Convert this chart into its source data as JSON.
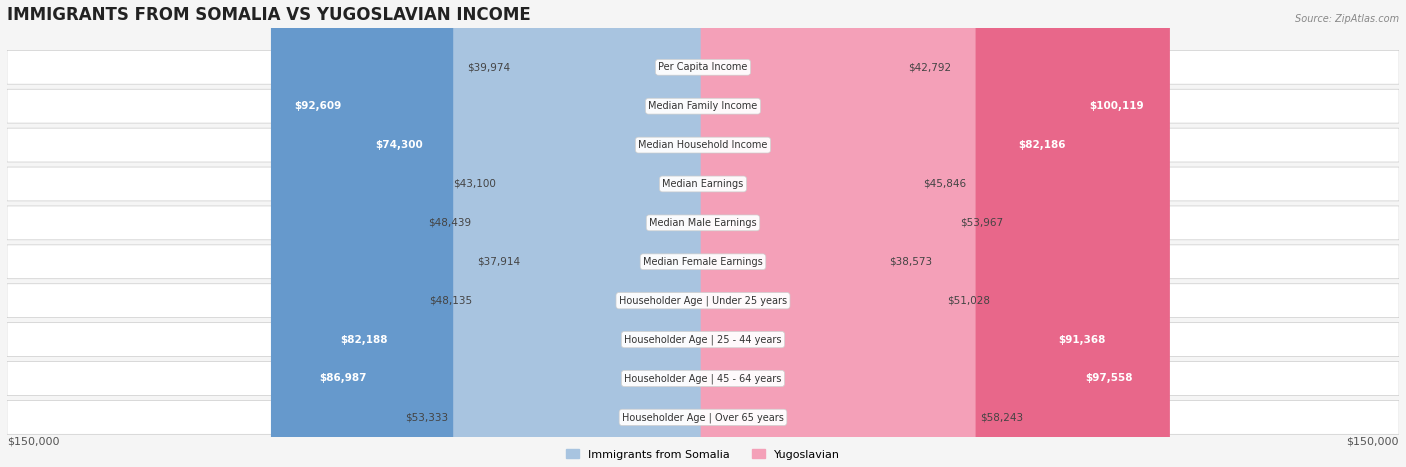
{
  "title": "IMMIGRANTS FROM SOMALIA VS YUGOSLAVIAN INCOME",
  "source": "Source: ZipAtlas.com",
  "categories": [
    "Per Capita Income",
    "Median Family Income",
    "Median Household Income",
    "Median Earnings",
    "Median Male Earnings",
    "Median Female Earnings",
    "Householder Age | Under 25 years",
    "Householder Age | 25 - 44 years",
    "Householder Age | 45 - 64 years",
    "Householder Age | Over 65 years"
  ],
  "somalia_values": [
    39974,
    92609,
    74300,
    43100,
    48439,
    37914,
    48135,
    82188,
    86987,
    53333
  ],
  "yugoslavian_values": [
    42792,
    100119,
    82186,
    45846,
    53967,
    38573,
    51028,
    91368,
    97558,
    58243
  ],
  "somalia_labels": [
    "$39,974",
    "$92,609",
    "$74,300",
    "$43,100",
    "$48,439",
    "$37,914",
    "$48,135",
    "$82,188",
    "$86,987",
    "$53,333"
  ],
  "yugoslavian_labels": [
    "$42,792",
    "$100,119",
    "$82,186",
    "$45,846",
    "$53,967",
    "$38,573",
    "$51,028",
    "$91,368",
    "$97,558",
    "$58,243"
  ],
  "somalia_color_light": "#a8c4e0",
  "somalia_color_dark": "#6699cc",
  "yugoslavian_color_light": "#f4a0b8",
  "yugoslavian_color_dark": "#e8678a",
  "max_value": 150000,
  "x_label_left": "$150,000",
  "x_label_right": "$150,000",
  "legend_somalia": "Immigrants from Somalia",
  "legend_yugoslavian": "Yugoslavian",
  "background_color": "#f5f5f5",
  "bar_background": "#e8e8e8",
  "row_bg": "#f0f0f0"
}
